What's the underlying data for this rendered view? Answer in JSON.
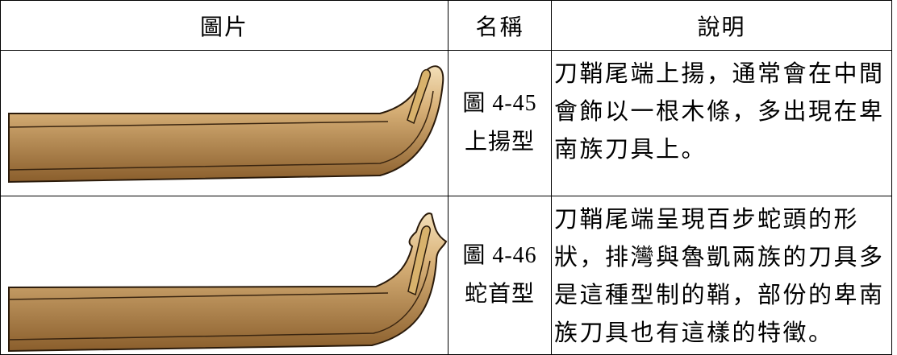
{
  "table": {
    "header": [
      "圖片",
      "名稱",
      "說明"
    ],
    "rows": [
      {
        "figure": "圖 4-45",
        "name": "上揚型",
        "description": "刀鞘尾端上揚，通常會在中間會飾以一根木條，多出現在卑南族刀具上。"
      },
      {
        "figure": "圖 4-46",
        "name": "蛇首型",
        "description": "刀鞘尾端呈現百步蛇頭的形狀，排灣與魯凱兩族的刀具多是這種型制的鞘，部份的卑南族刀具也有這樣的特徵。"
      }
    ]
  }
}
